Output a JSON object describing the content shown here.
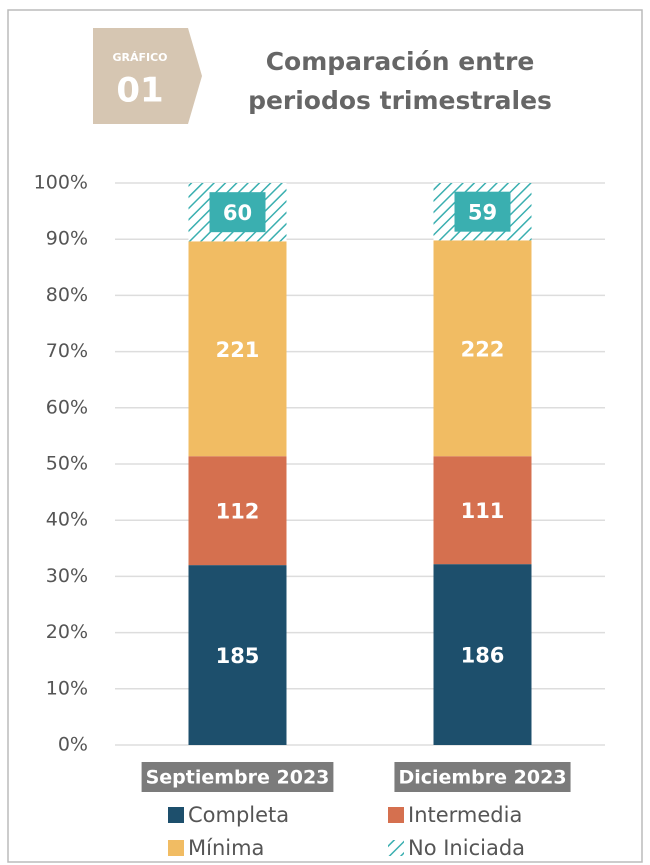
{
  "chart_data": {
    "type": "stacked-bar-percent",
    "badge": {
      "label": "GRÁFICO",
      "number": "01"
    },
    "title": [
      "Comparación entre",
      "periodos trimestrales"
    ],
    "categories": [
      "Septiembre 2023",
      "Diciembre 2023"
    ],
    "series": [
      {
        "name": "Completa",
        "color": "#1d4f6c",
        "values": [
          185,
          186
        ]
      },
      {
        "name": "Intermedia",
        "color": "#d5704f",
        "values": [
          112,
          111
        ]
      },
      {
        "name": "Mínima",
        "color": "#f1bc63",
        "values": [
          221,
          222
        ]
      },
      {
        "name": "No Iniciada",
        "color": "#3aafb0",
        "pattern": "hatch",
        "values": [
          60,
          59
        ]
      }
    ],
    "ylim": [
      0,
      100
    ],
    "yticks": [
      {
        "value": 0,
        "label": "0%"
      },
      {
        "value": 10,
        "label": "10%"
      },
      {
        "value": 20,
        "label": "20%"
      },
      {
        "value": 30,
        "label": "30%"
      },
      {
        "value": 40,
        "label": "40%"
      },
      {
        "value": 50,
        "label": "50%"
      },
      {
        "value": 60,
        "label": "60%"
      },
      {
        "value": 70,
        "label": "70%"
      },
      {
        "value": 80,
        "label": "80%"
      },
      {
        "value": 90,
        "label": "90%"
      },
      {
        "value": 100,
        "label": "100%"
      }
    ],
    "grid": true,
    "legend": "bottom"
  }
}
